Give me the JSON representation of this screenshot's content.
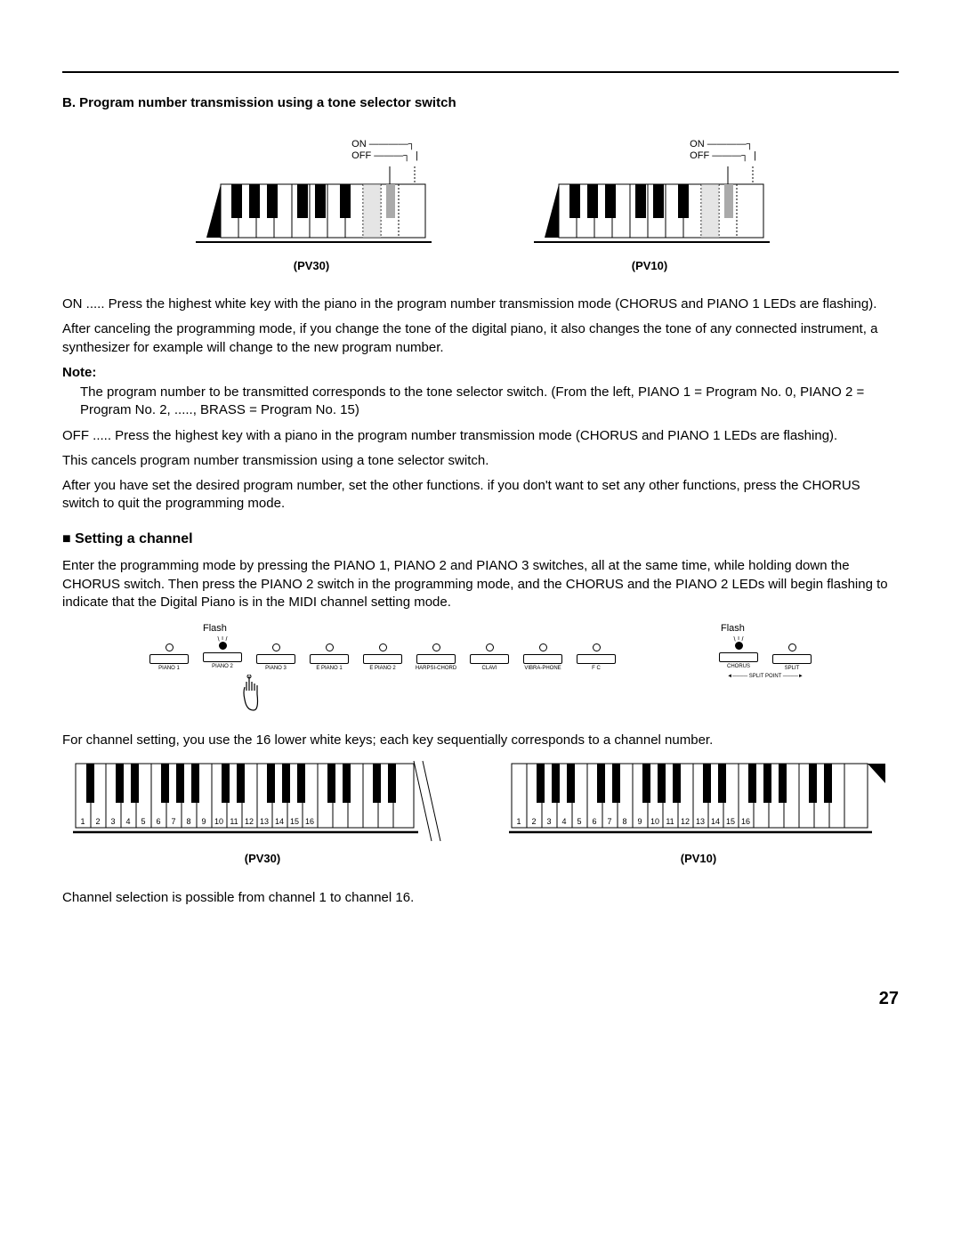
{
  "heading_b": "B. Program number transmission using a tone selector switch",
  "onoff": {
    "on": "ON",
    "off": "OFF"
  },
  "model_pv30": "(PV30)",
  "model_pv10": "(PV10)",
  "para_on": "ON ..... Press the highest white key with the piano in the program number transmission mode (CHORUS and PIANO 1 LEDs are flashing).",
  "para_after_cancel": "After canceling the programming mode, if you change the tone of the digital piano, it also changes the tone of any connected instrument, a synthesizer for example will change to the new program number.",
  "note_label": "Note:",
  "note_body": "The program number to be transmitted corresponds to the tone selector switch. (From the left, PIANO 1 = Program No. 0, PIANO 2 = Program No. 2, ....., BRASS = Program No. 15)",
  "para_off": "OFF ..... Press the highest key with a piano in the program number transmission mode (CHORUS and PIANO 1 LEDs are flashing).",
  "para_cancels": "This cancels program number transmission using a tone selector switch.",
  "para_after_set": "After you have set the desired program number, set the other functions. if you don't want to set any other functions, press the CHORUS switch to quit the programming mode.",
  "heading_channel": "Setting a channel",
  "para_channel_enter": "Enter the programming mode by pressing the PIANO 1, PIANO 2 and PIANO 3 switches, all at the same time, while holding down the CHORUS switch. Then press the PIANO 2 switch in the programming mode, and the CHORUS and the PIANO 2 LEDs will begin flashing to indicate that the Digital Piano is in the MIDI channel setting mode.",
  "flash_caption": "Flash",
  "tone_labels": [
    "PIANO 1",
    "PIANO 2",
    "PIANO 3",
    "E PIANO 1",
    "E PIANO 2",
    "HARPSI-CHORD",
    "CLAVI",
    "VIBRA-PHONE",
    "F C"
  ],
  "chorus_labels": [
    "CHORUS",
    "SPLIT"
  ],
  "split_point": "SPLIT POINT",
  "para_channel_keys": "For channel setting, you use the 16 lower white keys; each key sequentially corresponds to a channel number.",
  "channel_numbers": [
    "1",
    "2",
    "3",
    "4",
    "5",
    "6",
    "7",
    "8",
    "9",
    "10",
    "11",
    "12",
    "13",
    "14",
    "15",
    "16"
  ],
  "para_channel_range": "Channel selection is possible from channel 1 to channel 16.",
  "page_number": "27",
  "colors": {
    "text": "#000000",
    "bg": "#ffffff"
  }
}
